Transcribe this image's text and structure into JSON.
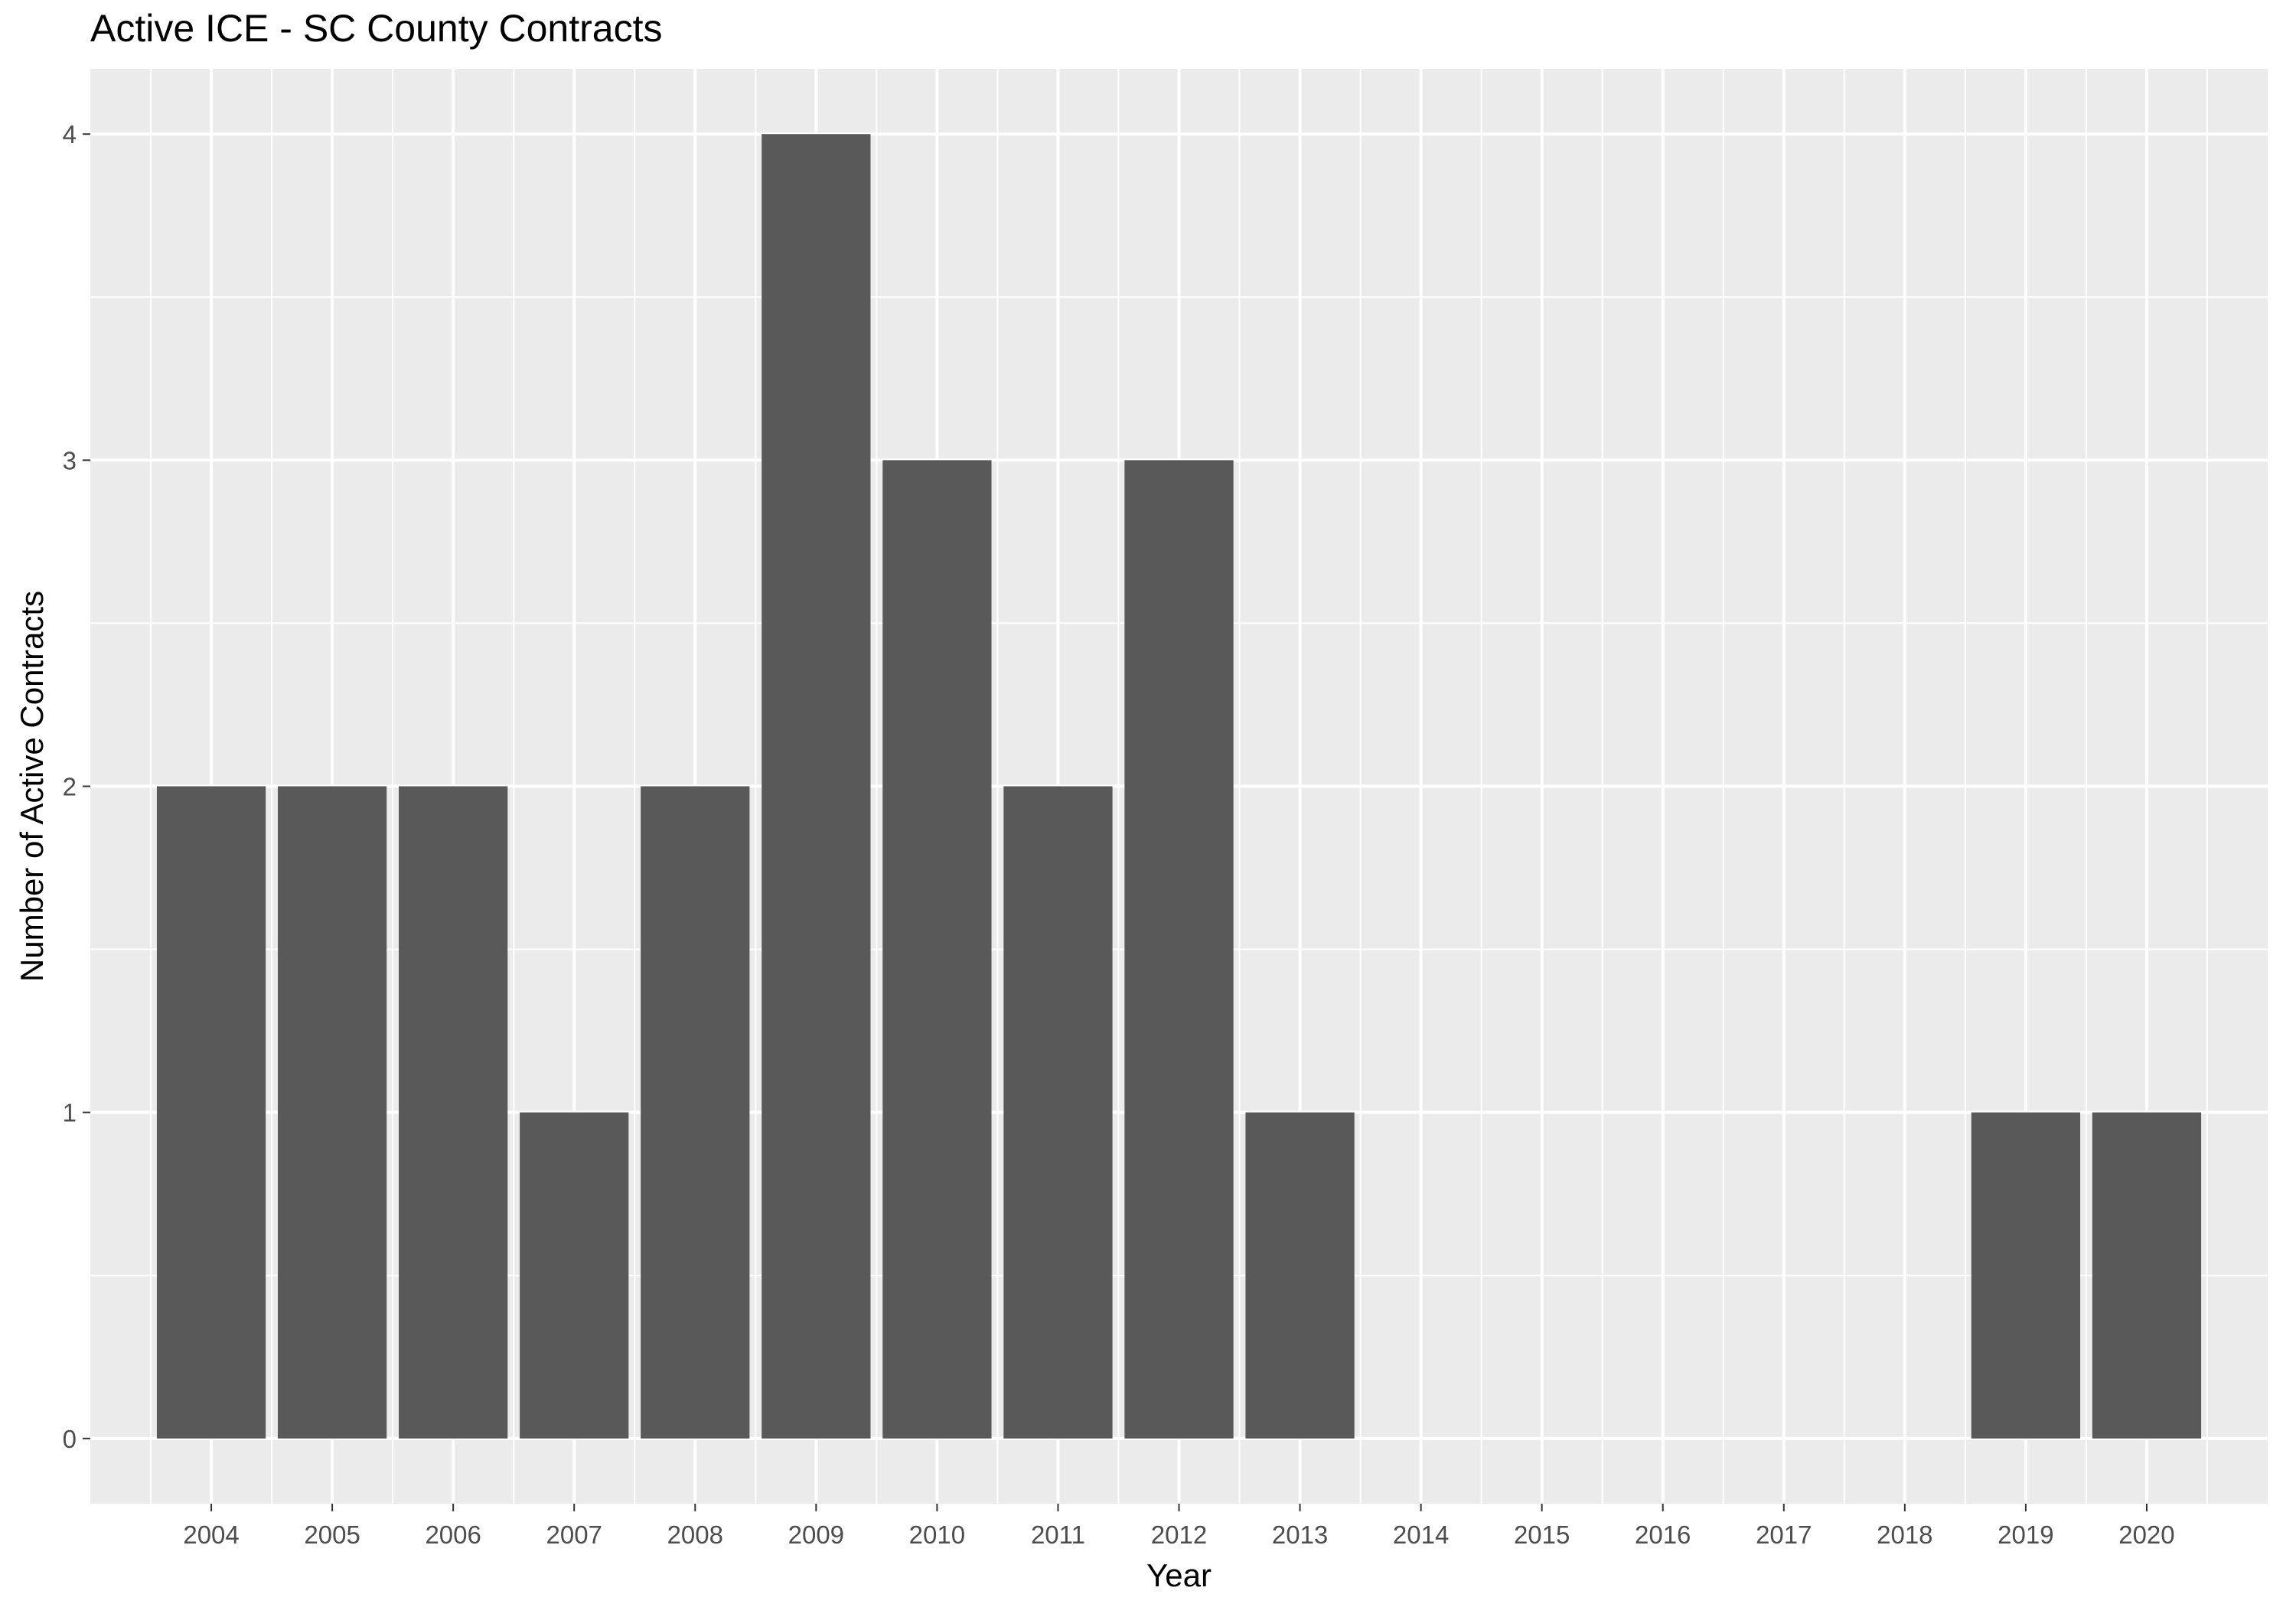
{
  "chart_data": {
    "type": "bar",
    "title": "Active ICE - SC County Contracts",
    "xlabel": "Year",
    "ylabel": "Number of Active Contracts",
    "categories": [
      "2004",
      "2005",
      "2006",
      "2007",
      "2008",
      "2009",
      "2010",
      "2011",
      "2012",
      "2013",
      "2014",
      "2015",
      "2016",
      "2017",
      "2018",
      "2019",
      "2020"
    ],
    "values": [
      2,
      2,
      2,
      1,
      2,
      4,
      3,
      2,
      3,
      1,
      0,
      0,
      0,
      0,
      0,
      1,
      1
    ],
    "ylim": [
      -0.2,
      4.2
    ],
    "yticks": [
      "0",
      "1",
      "2",
      "3",
      "4"
    ],
    "grid": true,
    "bar_color": "#595959",
    "panel_color": "#ebebeb",
    "grid_color": "#ffffff"
  }
}
